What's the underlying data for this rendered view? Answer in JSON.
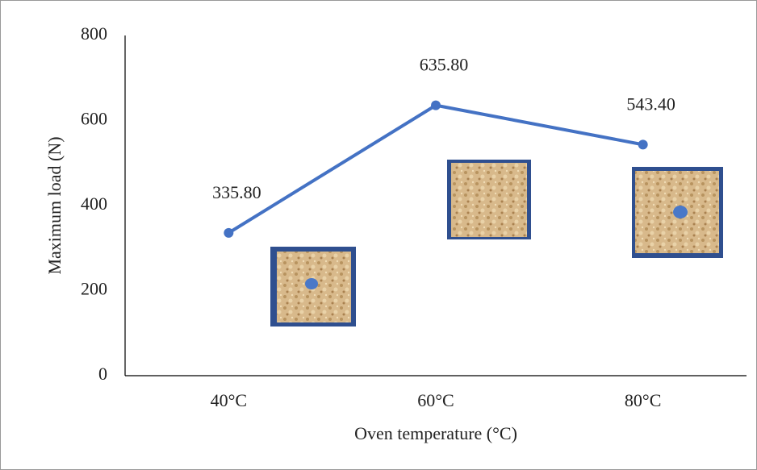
{
  "chart_data": {
    "type": "line",
    "xlabel": "Oven temperature (°C)",
    "ylabel": "Maximum load (N)",
    "categories": [
      "40°C",
      "60°C",
      "80°C"
    ],
    "values": [
      335.8,
      635.8,
      543.4
    ],
    "value_labels": [
      "335.80",
      "635.80",
      "543.40"
    ],
    "color": "#4472c4",
    "ylim": [
      0,
      800
    ],
    "yticks": [
      0,
      200,
      400,
      600,
      800
    ],
    "grid": false
  }
}
